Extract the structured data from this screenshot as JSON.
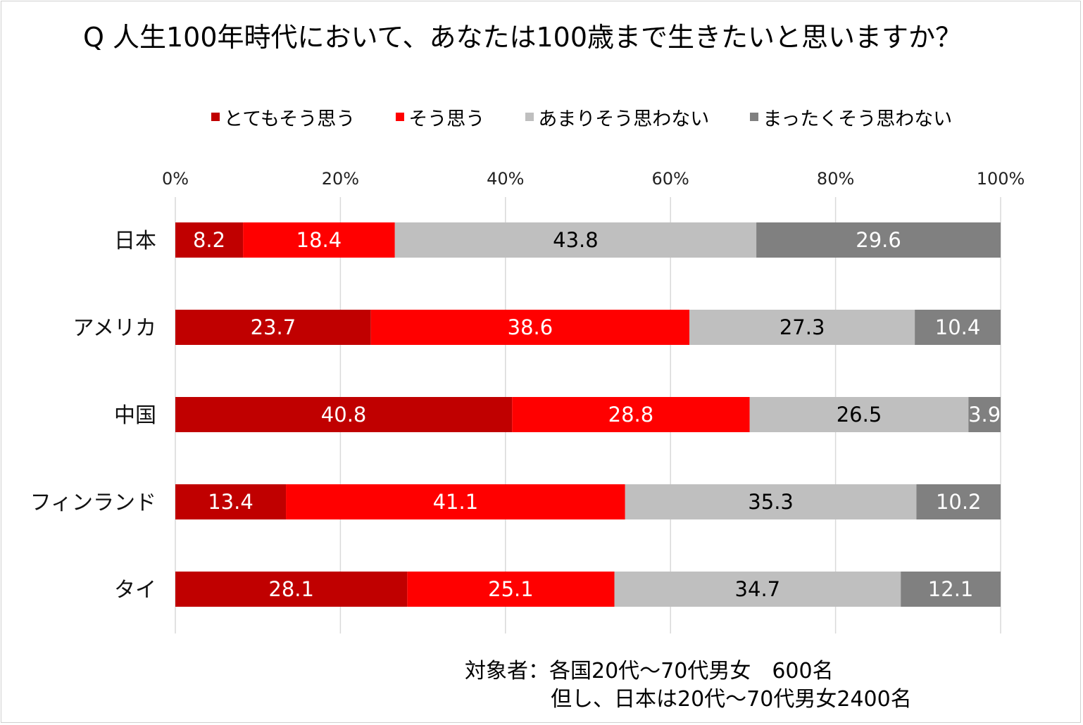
{
  "title": "Q 人生100年時代において、あなたは100歳まで生きたいと思いますか？",
  "legend": [
    {
      "label": "とてもそう思う",
      "color": "#c00000"
    },
    {
      "label": "そう思う",
      "color": "#ff0000"
    },
    {
      "label": "あまりそう思わない",
      "color": "#bfbfbf"
    },
    {
      "label": "まったくそう思わない",
      "color": "#808080"
    }
  ],
  "notes": {
    "line1": "対象者：各国20代～70代男女　600名",
    "line2": "但し、日本は20代～70代男女2400名"
  },
  "chart_data": {
    "type": "bar",
    "orientation": "horizontal",
    "stacked": "percent",
    "title": "Q 人生100年時代において、あなたは100歳まで生きたいと思いますか？",
    "xlim": [
      0,
      100
    ],
    "ticks": [
      "0%",
      "20%",
      "40%",
      "60%",
      "80%",
      "100%"
    ],
    "grid": true,
    "legend_position": "top",
    "categories": [
      "日本",
      "アメリカ",
      "中国",
      "フィンランド",
      "タイ"
    ],
    "series": [
      {
        "name": "とてもそう思う",
        "color": "#c00000",
        "label_color": "#ffffff",
        "values": [
          8.2,
          23.7,
          40.8,
          13.4,
          28.1
        ]
      },
      {
        "name": "そう思う",
        "color": "#ff0000",
        "label_color": "#ffffff",
        "values": [
          18.4,
          38.6,
          28.8,
          41.1,
          25.1
        ]
      },
      {
        "name": "あまりそう思わない",
        "color": "#bfbfbf",
        "label_color": "#000000",
        "values": [
          43.8,
          27.3,
          26.5,
          35.3,
          34.7
        ]
      },
      {
        "name": "まったくそう思わない",
        "color": "#808080",
        "label_color": "#ffffff",
        "values": [
          29.6,
          10.4,
          3.9,
          10.2,
          12.1
        ]
      }
    ]
  }
}
